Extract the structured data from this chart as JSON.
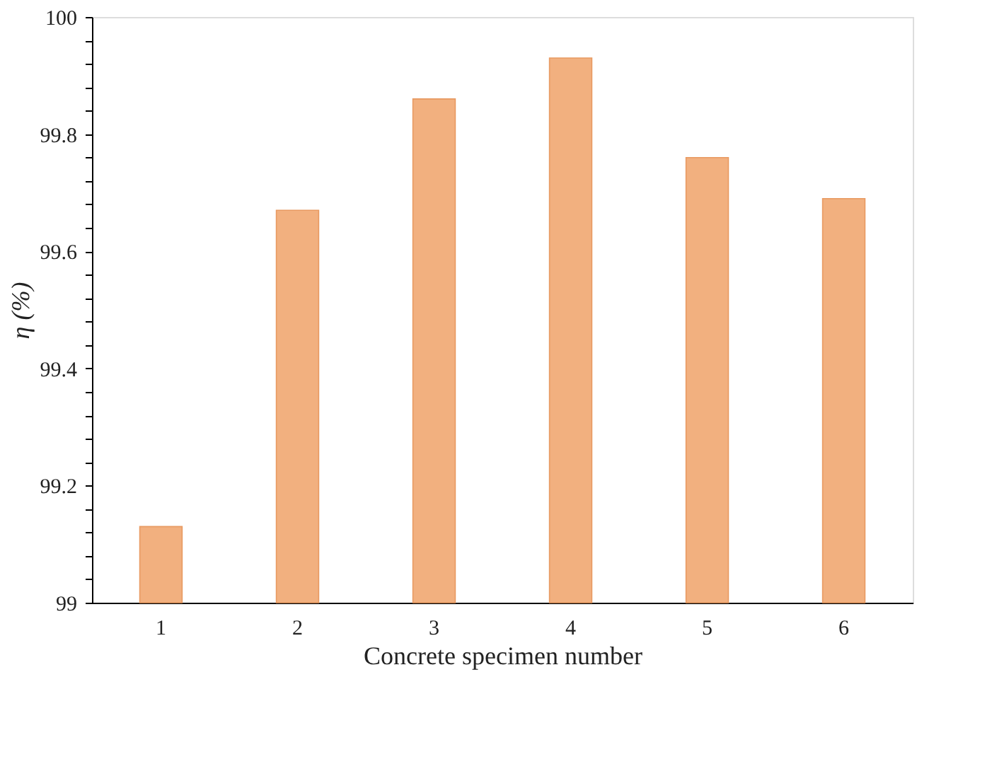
{
  "chart_data": {
    "type": "bar",
    "xlabel": "Concrete specimen number",
    "ylabel": "η (%)",
    "categories": [
      "1",
      "2",
      "3",
      "4",
      "5",
      "6"
    ],
    "values": [
      99.13,
      99.67,
      99.86,
      99.93,
      99.76,
      99.69
    ],
    "color": "#f2b07f",
    "ylim": [
      99,
      100
    ],
    "yticks": [
      99,
      {
        "value": 99.04,
        "label": null
      },
      {
        "value": 99.08,
        "label": null
      },
      {
        "value": 99.12,
        "label": null
      },
      {
        "value": 99.16,
        "label": null
      },
      99.2,
      {
        "value": 99.24,
        "label": null
      },
      {
        "value": 99.28,
        "label": null
      },
      {
        "value": 99.32,
        "label": null
      },
      {
        "value": 99.36,
        "label": null
      },
      99.4,
      {
        "value": 99.44,
        "label": null
      },
      {
        "value": 99.48,
        "label": null
      },
      {
        "value": 99.52,
        "label": null
      },
      {
        "value": 99.56,
        "label": null
      },
      99.6,
      {
        "value": 99.64,
        "label": null
      },
      {
        "value": 99.68,
        "label": null
      },
      {
        "value": 99.72,
        "label": null
      },
      {
        "value": 99.76,
        "label": null
      },
      99.8,
      {
        "value": 99.84,
        "label": null
      },
      {
        "value": 99.88,
        "label": null
      },
      {
        "value": 99.92,
        "label": null
      },
      {
        "value": 99.96,
        "label": null
      },
      100
    ],
    "grid": false
  }
}
